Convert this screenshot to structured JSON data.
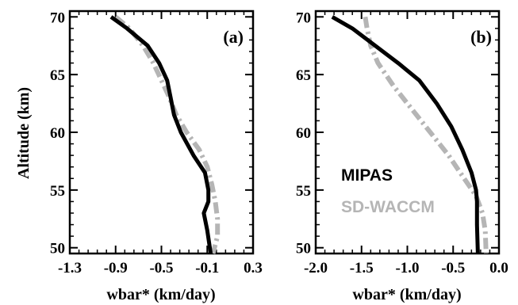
{
  "ylabel": "Altitude (km)",
  "colors": {
    "mipas": "#000000",
    "waccm": "#b5b5b5"
  },
  "legend": {
    "items": [
      "MIPAS",
      "SD-WACCM"
    ],
    "placement": "lower-left of panel (b)"
  },
  "chart_data": [
    {
      "type": "line",
      "panel_label": "(a)",
      "xlabel": "wbar* (km/day)",
      "ylabel": "Altitude (km)",
      "xlim": [
        -1.3,
        0.3
      ],
      "ylim": [
        49.5,
        70.5
      ],
      "xticks": [
        "-1.3",
        "-0.9",
        "-0.5",
        "-0.1",
        "0.3"
      ],
      "xtick_values": [
        -1.3,
        -0.9,
        -0.5,
        -0.1,
        0.3
      ],
      "yticks": [
        "50",
        "55",
        "60",
        "65",
        "70"
      ],
      "ytick_values": [
        50,
        55,
        60,
        65,
        70
      ],
      "series": [
        {
          "name": "MIPAS",
          "style": "solid",
          "x": [
            -0.94,
            -0.8,
            -0.62,
            -0.52,
            -0.45,
            -0.42,
            -0.39,
            -0.33,
            -0.22,
            -0.12,
            -0.09,
            -0.09,
            -0.13,
            -0.1,
            -0.07
          ],
          "y": [
            70,
            69,
            67.5,
            66,
            64.5,
            63,
            61.5,
            60,
            58,
            56.5,
            55,
            54,
            53,
            51.5,
            49.5
          ]
        },
        {
          "name": "SD-WACCM",
          "style": "dashdot",
          "x": [
            -0.9,
            -0.78,
            -0.66,
            -0.57,
            -0.5,
            -0.43,
            -0.37,
            -0.28,
            -0.17,
            -0.1,
            -0.06,
            -0.03,
            -0.01,
            -0.01,
            -0.05
          ],
          "y": [
            70,
            69,
            67.5,
            66,
            64.5,
            63,
            61.5,
            60,
            58.5,
            57,
            55.5,
            54,
            52.5,
            51,
            49.5
          ]
        }
      ]
    },
    {
      "type": "line",
      "panel_label": "(b)",
      "xlabel": "wbar* (km/day)",
      "ylabel": "",
      "xlim": [
        -2.0,
        0.0
      ],
      "ylim": [
        49.5,
        70.5
      ],
      "xticks": [
        "-2.0",
        "-1.5",
        "-1.0",
        "-0.5",
        "0.0"
      ],
      "xtick_values": [
        -2.0,
        -1.5,
        -1.0,
        -0.5,
        0.0
      ],
      "yticks": [
        "50",
        "55",
        "60",
        "65",
        "70"
      ],
      "ytick_values": [
        50,
        55,
        60,
        65,
        70
      ],
      "series": [
        {
          "name": "MIPAS",
          "style": "solid",
          "x": [
            -1.82,
            -1.6,
            -1.35,
            -1.1,
            -0.87,
            -0.68,
            -0.52,
            -0.4,
            -0.3,
            -0.25,
            -0.24,
            -0.24,
            -0.23
          ],
          "y": [
            70,
            69,
            67.5,
            66,
            64.5,
            62.5,
            60.5,
            58.5,
            56.5,
            55,
            54,
            52,
            49.5
          ]
        },
        {
          "name": "SD-WACCM",
          "style": "dashdot",
          "x": [
            -1.46,
            -1.44,
            -1.4,
            -1.32,
            -1.15,
            -0.95,
            -0.75,
            -0.55,
            -0.38,
            -0.25,
            -0.18,
            -0.15,
            -0.14
          ],
          "y": [
            70,
            69,
            67.5,
            66,
            64,
            62,
            60,
            58,
            56,
            54.5,
            53,
            51.5,
            49.5
          ]
        }
      ]
    }
  ]
}
